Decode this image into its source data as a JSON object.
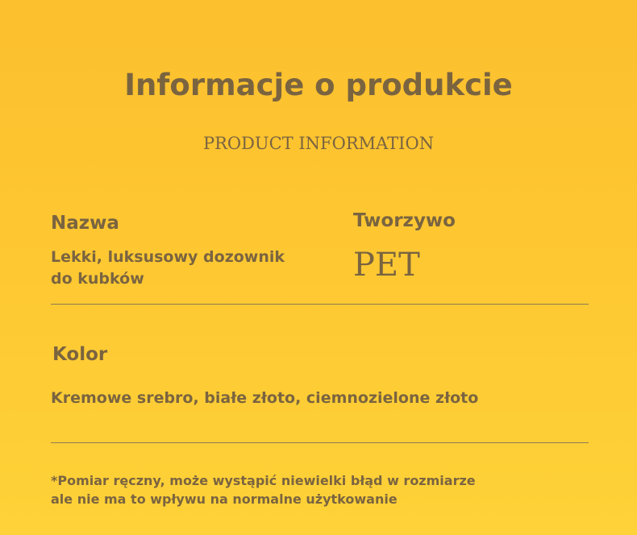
{
  "title": "Informacje o produkcie",
  "subtitle": "PRODUCT INFORMATION",
  "name": {
    "label": "Nazwa",
    "value_line1": "Lekki, luksusowy dozownik",
    "value_line2": "do kubków"
  },
  "material": {
    "label": "Tworzywo",
    "value": "PET"
  },
  "color": {
    "label": "Kolor",
    "value": "Kremowe srebro, białe złoto, ciemnozielone złoto"
  },
  "note": {
    "line1": "*Pomiar ręczny, może wystąpić niewielki błąd w rozmiarze",
    "line2": "ale nie ma to wpływu na normalne użytkowanie"
  }
}
